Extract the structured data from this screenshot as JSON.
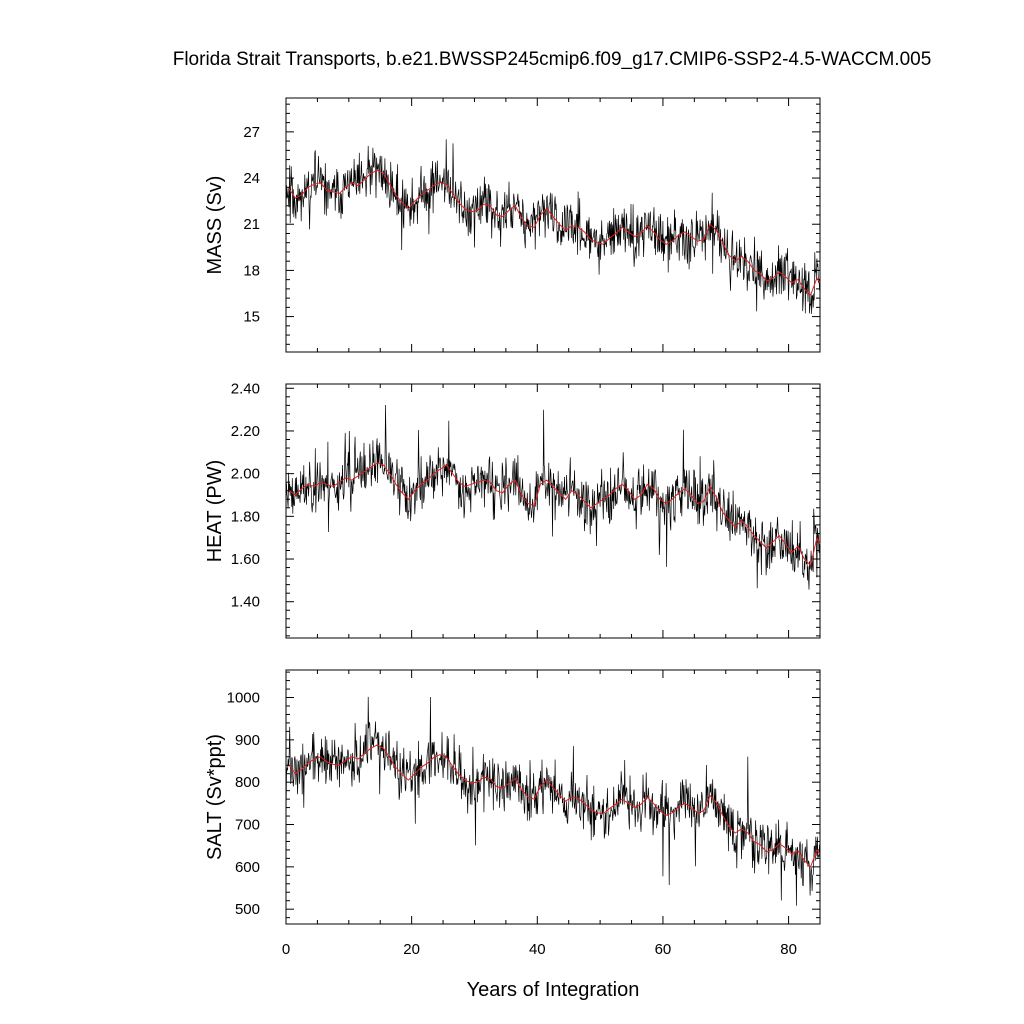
{
  "chart_data": {
    "type": "line",
    "title": "Florida Strait Transports, b.e21.BWSSP245cmip6.f09_g17.CMIP6-SSP2-4.5-WACCM.005",
    "xlabel": "Years of Integration",
    "xlim": [
      0,
      85
    ],
    "xticks": [
      "0",
      "20",
      "40",
      "60",
      "80"
    ],
    "series_colors": {
      "monthly": "#000000",
      "annual_mean": "#e02020"
    },
    "panels": [
      {
        "ylabel": "MASS (Sv)",
        "ylim": [
          12.7,
          29.2
        ],
        "yticks": [
          "15",
          "18",
          "21",
          "24",
          "27"
        ],
        "annual_mean": [
          23.3,
          22.7,
          22.9,
          23.4,
          23.6,
          23.7,
          23.2,
          23.1,
          23.0,
          23.4,
          23.7,
          23.5,
          23.9,
          24.3,
          24.5,
          24.3,
          23.6,
          22.9,
          22.4,
          22.0,
          22.5,
          22.9,
          23.2,
          23.5,
          23.7,
          23.6,
          23.0,
          22.4,
          22.0,
          21.8,
          21.9,
          22.3,
          22.2,
          21.6,
          21.5,
          21.9,
          22.2,
          21.4,
          20.9,
          20.8,
          21.6,
          22.0,
          21.5,
          21.0,
          20.6,
          20.9,
          20.8,
          20.5,
          20.0,
          19.8,
          19.7,
          20.1,
          20.4,
          20.8,
          20.5,
          20.2,
          20.4,
          20.9,
          20.5,
          20.0,
          19.7,
          19.9,
          20.3,
          20.5,
          20.2,
          19.9,
          20.0,
          21.0,
          20.6,
          19.8,
          19.0,
          18.6,
          18.9,
          18.6,
          18.0,
          17.8,
          17.3,
          17.5,
          17.9,
          17.6,
          17.2,
          17.4,
          16.8,
          16.4,
          17.5,
          17.2
        ],
        "monthly_band": 1.6,
        "spike_scale": 3.0,
        "seed": 11
      },
      {
        "ylabel": "HEAT (PW)",
        "ylim": [
          1.23,
          2.42
        ],
        "yticks": [
          "1.40",
          "1.60",
          "1.80",
          "2.00",
          "2.20",
          "2.40"
        ],
        "annual_mean": [
          1.92,
          1.9,
          1.93,
          1.95,
          1.94,
          1.96,
          1.95,
          1.94,
          1.96,
          1.98,
          1.97,
          1.99,
          2.01,
          2.03,
          2.05,
          2.04,
          2.0,
          1.95,
          1.91,
          1.88,
          1.92,
          1.95,
          1.97,
          2.0,
          2.02,
          2.04,
          2.0,
          1.96,
          1.94,
          1.95,
          1.96,
          1.97,
          1.96,
          1.92,
          1.91,
          1.95,
          1.97,
          1.9,
          1.86,
          1.85,
          1.95,
          1.97,
          1.94,
          1.91,
          1.88,
          1.92,
          1.9,
          1.87,
          1.84,
          1.86,
          1.88,
          1.9,
          1.93,
          1.95,
          1.92,
          1.88,
          1.9,
          1.95,
          1.93,
          1.88,
          1.86,
          1.88,
          1.91,
          1.93,
          1.9,
          1.86,
          1.87,
          1.94,
          1.89,
          1.82,
          1.78,
          1.75,
          1.78,
          1.75,
          1.71,
          1.68,
          1.65,
          1.68,
          1.71,
          1.67,
          1.63,
          1.66,
          1.6,
          1.57,
          1.7,
          1.67
        ],
        "monthly_band": 0.12,
        "spike_scale": 0.24,
        "seed": 23
      },
      {
        "ylabel": "SALT (Sv*ppt)",
        "ylim": [
          465,
          1065
        ],
        "yticks": [
          "500",
          "600",
          "700",
          "800",
          "900",
          "1000"
        ],
        "annual_mean": [
          840,
          820,
          830,
          845,
          855,
          860,
          848,
          842,
          840,
          852,
          860,
          855,
          868,
          880,
          888,
          880,
          858,
          835,
          818,
          805,
          820,
          835,
          845,
          858,
          865,
          860,
          838,
          818,
          805,
          798,
          800,
          812,
          808,
          790,
          785,
          798,
          808,
          782,
          765,
          760,
          790,
          805,
          788,
          770,
          755,
          765,
          762,
          750,
          735,
          728,
          725,
          738,
          748,
          760,
          750,
          740,
          748,
          765,
          750,
          732,
          722,
          728,
          742,
          750,
          740,
          728,
          732,
          768,
          752,
          722,
          695,
          680,
          690,
          680,
          660,
          652,
          635,
          640,
          655,
          645,
          630,
          638,
          615,
          600,
          640,
          630
        ],
        "monthly_band": 58,
        "spike_scale": 115,
        "seed": 37
      }
    ]
  }
}
